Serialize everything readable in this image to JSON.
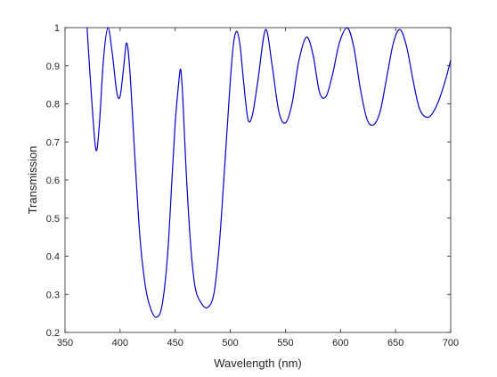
{
  "chart_data": {
    "type": "line",
    "title": "",
    "xlabel": "Wavelength (nm)",
    "ylabel": "Transmission",
    "xlim": [
      350,
      700
    ],
    "ylim": [
      0.2,
      1
    ],
    "xticks": [
      "350",
      "400",
      "450",
      "500",
      "550",
      "600",
      "650",
      "700"
    ],
    "yticks": [
      "0.2",
      "0.3",
      "0.4",
      "0.5",
      "0.6",
      "0.7",
      "0.8",
      "0.9",
      "1"
    ],
    "grid": false,
    "line_color": "#0000cc",
    "series": [
      {
        "x": [
          370,
          374,
          378,
          381,
          385,
          389,
          393,
          397,
          400,
          403,
          406,
          409,
          413,
          418,
          423,
          428,
          433,
          438,
          443,
          447,
          450,
          453,
          455,
          457,
          460,
          464,
          468,
          473,
          479,
          485,
          490,
          495,
          500,
          503,
          506,
          509,
          512,
          516,
          520,
          525,
          532,
          538,
          544,
          550,
          556,
          562,
          569,
          575,
          581,
          587,
          593,
          599,
          606,
          612,
          618,
          624,
          630,
          636,
          642,
          648,
          654,
          660,
          666,
          672,
          680,
          688,
          695,
          700
        ],
        "y": [
          1.0,
          0.82,
          0.68,
          0.74,
          0.92,
          1.0,
          0.93,
          0.83,
          0.82,
          0.89,
          0.96,
          0.88,
          0.68,
          0.45,
          0.32,
          0.26,
          0.24,
          0.27,
          0.4,
          0.6,
          0.75,
          0.85,
          0.89,
          0.81,
          0.62,
          0.43,
          0.32,
          0.28,
          0.265,
          0.3,
          0.43,
          0.64,
          0.86,
          0.96,
          0.99,
          0.95,
          0.86,
          0.76,
          0.77,
          0.86,
          0.995,
          0.9,
          0.78,
          0.75,
          0.8,
          0.91,
          0.975,
          0.93,
          0.83,
          0.82,
          0.88,
          0.96,
          1.0,
          0.95,
          0.84,
          0.76,
          0.745,
          0.78,
          0.87,
          0.96,
          0.995,
          0.95,
          0.86,
          0.785,
          0.765,
          0.8,
          0.86,
          0.915
        ]
      }
    ]
  }
}
